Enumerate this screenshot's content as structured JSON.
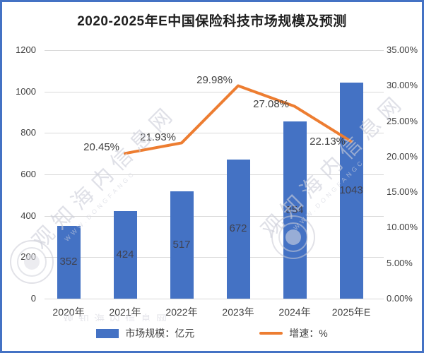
{
  "title": "2020-2025年E中国保险科技市场规模及预测",
  "legend": {
    "market_label": "市场规模：亿元",
    "growth_label": "增速：%"
  },
  "watermark": {
    "cn_text": "观知海内信息网",
    "url_text": "WWW.DONGFANGC"
  },
  "colors": {
    "bar": "#4472C4",
    "line": "#ED7D31",
    "grid": "#d9d9d9",
    "border": "#4472C4",
    "axis_text": "#404040"
  },
  "chart_data": {
    "type": "bar+line",
    "title": "2020-2025年E中国保险科技市场规模及预测",
    "categories": [
      "2020年",
      "2021年",
      "2022年",
      "2023年",
      "2024年",
      "2025年E"
    ],
    "series": [
      {
        "name": "市场规模：亿元",
        "type": "bar",
        "axis": "left",
        "color": "#4472C4",
        "values": [
          352,
          424,
          517,
          672,
          854,
          1043
        ],
        "value_labels": [
          "352",
          "424",
          "517",
          "672",
          "854",
          "1043"
        ]
      },
      {
        "name": "增速：%",
        "type": "line",
        "axis": "right",
        "color": "#ED7D31",
        "x_categories": [
          "2021年",
          "2022年",
          "2023年",
          "2024年",
          "2025年E"
        ],
        "values": [
          20.45,
          21.93,
          29.98,
          27.08,
          22.13
        ],
        "value_labels": [
          "20.45%",
          "21.93%",
          "29.98%",
          "27.08%",
          "22.13%"
        ]
      }
    ],
    "left_axis": {
      "min": 0,
      "max": 1200,
      "step": 200,
      "ticks": [
        "0",
        "200",
        "400",
        "600",
        "800",
        "1000",
        "1200"
      ]
    },
    "right_axis": {
      "min": 0,
      "max": 35,
      "step": 5,
      "ticks": [
        "0.00%",
        "5.00%",
        "10.00%",
        "15.00%",
        "20.00%",
        "25.00%",
        "30.00%",
        "35.00%"
      ]
    },
    "grid": true,
    "legend_position": "bottom"
  }
}
